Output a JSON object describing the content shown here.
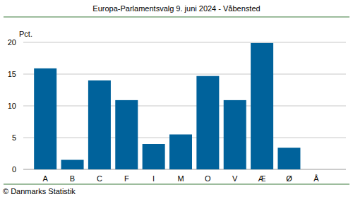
{
  "chart_data": {
    "type": "bar",
    "title": "Europa-Parlamentsvalg 9. juni 2024 - Våbensted",
    "y_label": "Pct.",
    "footer": "© Danmarks Statistik",
    "categories": [
      "A",
      "B",
      "C",
      "F",
      "I",
      "M",
      "O",
      "V",
      "Æ",
      "Ø",
      "Å"
    ],
    "values": [
      15.9,
      1.5,
      14.0,
      10.9,
      4.0,
      5.5,
      14.7,
      10.9,
      19.9,
      3.4,
      0
    ],
    "color": "#00629b",
    "ylim": [
      0,
      20
    ],
    "yticks": [
      0,
      5,
      10,
      15,
      20
    ],
    "grid": true
  }
}
